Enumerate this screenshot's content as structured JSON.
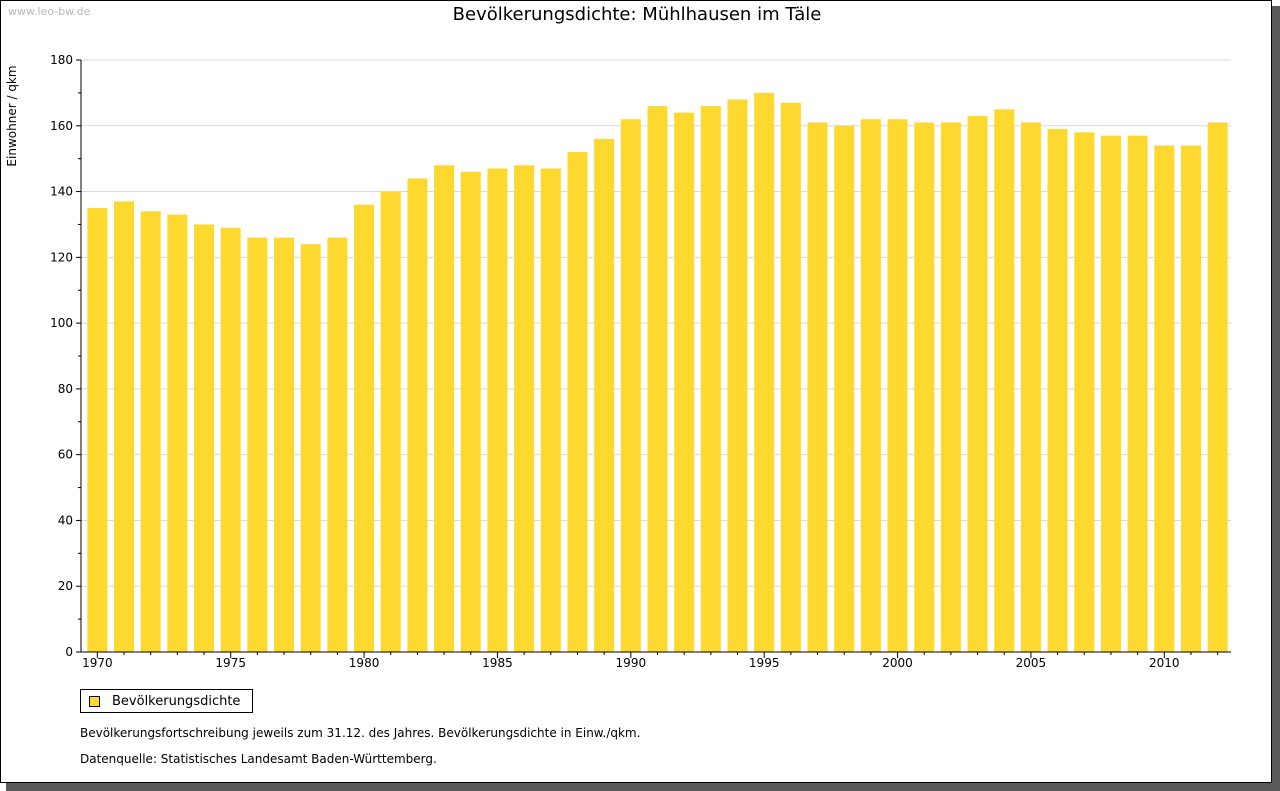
{
  "watermark": "www.leo-bw.de",
  "colors": {
    "bar": "#FDD92F",
    "grid": "#d9d9d9",
    "axis": "#000000"
  },
  "chart_data": {
    "type": "bar",
    "title": "Bevölkerungsdichte: Mühlhausen im Täle",
    "ylabel": "Einwohner / qkm",
    "xlabel": "",
    "ylim": [
      0,
      180
    ],
    "yticks": [
      0,
      20,
      40,
      60,
      80,
      100,
      120,
      140,
      160,
      180
    ],
    "xtick_labels": [
      "1970",
      "1975",
      "1980",
      "1985",
      "1990",
      "1995",
      "2000",
      "2005",
      "2010"
    ],
    "grid": true,
    "legend_position": "bottom-left",
    "categories": [
      1970,
      1971,
      1972,
      1973,
      1974,
      1975,
      1976,
      1977,
      1978,
      1979,
      1980,
      1981,
      1982,
      1983,
      1984,
      1985,
      1986,
      1987,
      1988,
      1989,
      1990,
      1991,
      1992,
      1993,
      1994,
      1995,
      1996,
      1997,
      1998,
      1999,
      2000,
      2001,
      2002,
      2003,
      2004,
      2005,
      2006,
      2007,
      2008,
      2009,
      2010,
      2011,
      2012
    ],
    "series": [
      {
        "name": "Bevölkerungsdichte",
        "values": [
          135,
          137,
          134,
          133,
          130,
          129,
          126,
          126,
          124,
          126,
          136,
          140,
          144,
          148,
          146,
          147,
          148,
          147,
          152,
          156,
          162,
          166,
          164,
          166,
          168,
          170,
          167,
          161,
          160,
          162,
          162,
          161,
          161,
          163,
          165,
          161,
          159,
          158,
          157,
          157,
          154,
          154,
          161
        ]
      }
    ]
  },
  "notes": {
    "line1": "Bevölkerungsfortschreibung jeweils zum 31.12. des Jahres. Bevölkerungsdichte in Einw./qkm.",
    "line2": "Datenquelle: Statistisches Landesamt Baden-Württemberg."
  }
}
